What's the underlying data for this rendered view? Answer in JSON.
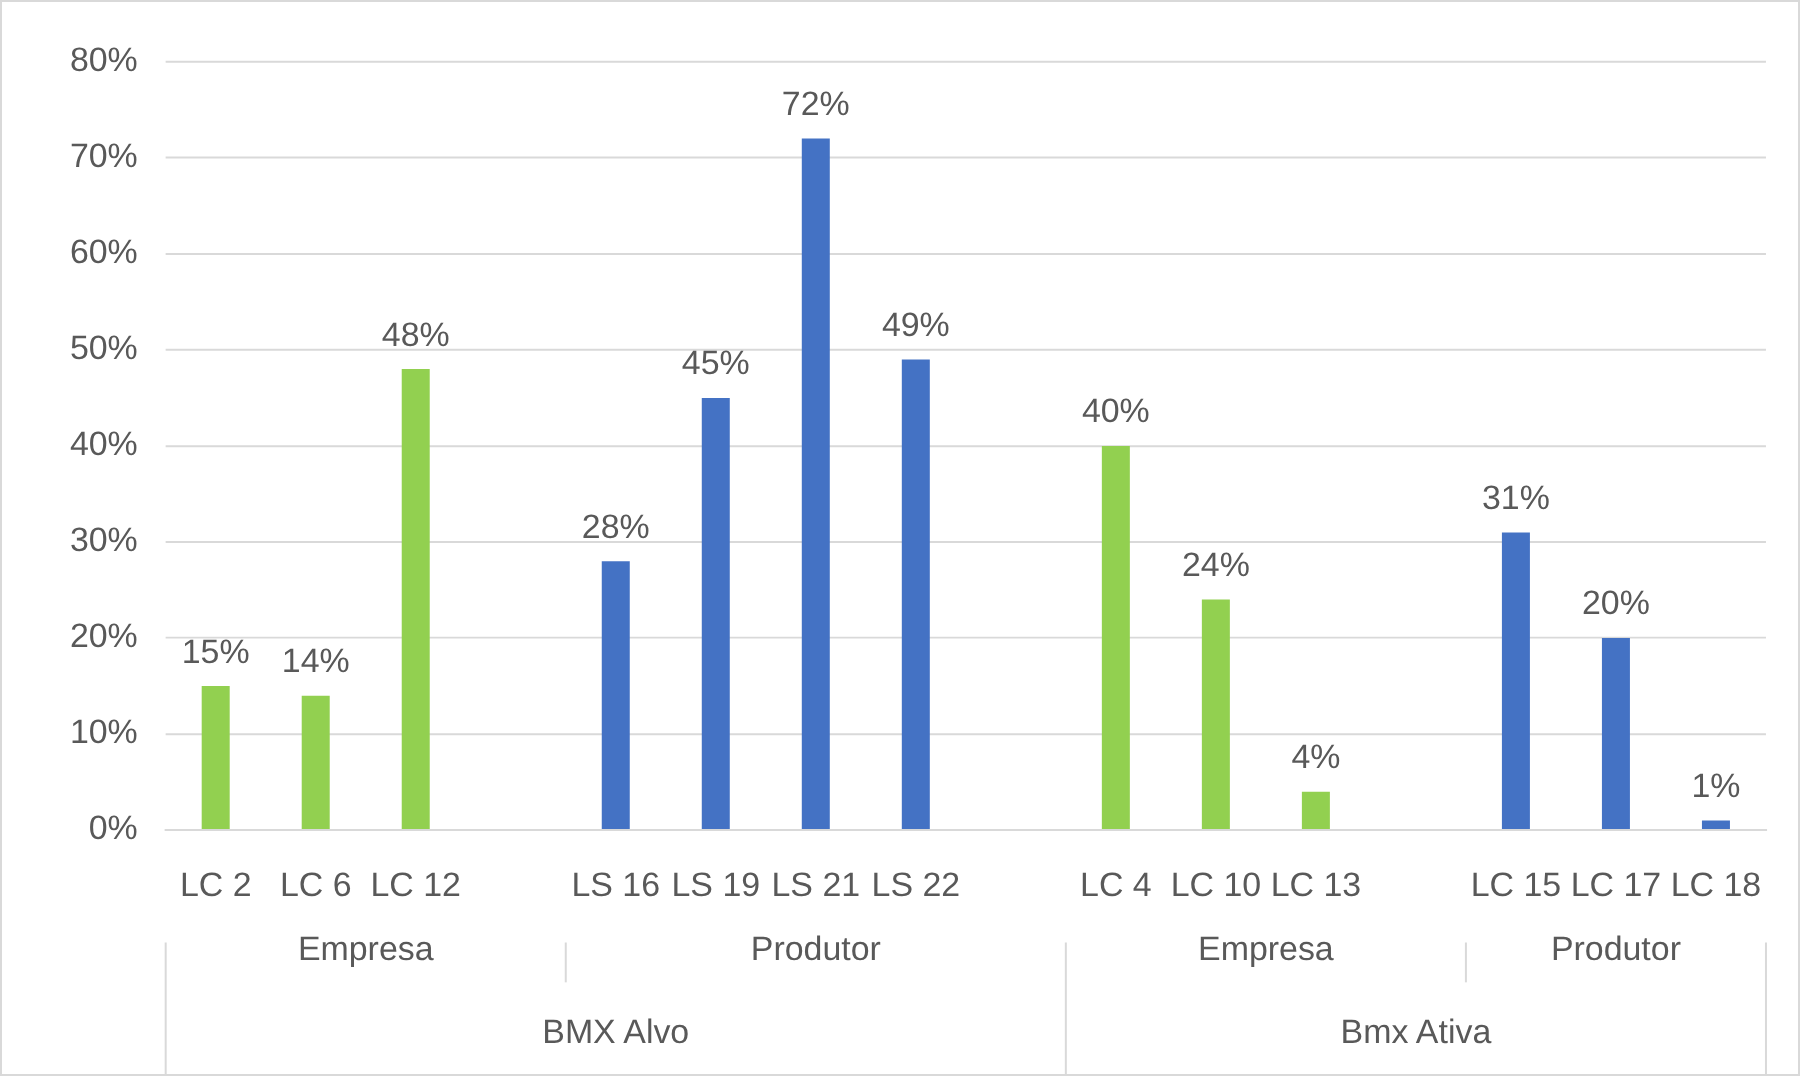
{
  "chart_data": {
    "type": "bar",
    "categories": [
      "LC 2",
      "LC 6",
      "LC 12",
      null,
      "LS 16",
      "LS 19",
      "LS 21",
      "LS 22",
      null,
      "LC 4",
      "LC 10",
      "LC 13",
      null,
      "LC 15",
      "LC 17",
      "LC 18"
    ],
    "values": [
      15,
      14,
      48,
      null,
      28,
      45,
      72,
      49,
      null,
      40,
      24,
      4,
      null,
      31,
      20,
      1
    ],
    "colors": [
      "#92d050",
      "#92d050",
      "#92d050",
      "#92d050",
      "#4472c4",
      "#4472c4",
      "#4472c4",
      "#4472c4",
      "#92d050",
      "#92d050",
      "#92d050",
      "#92d050",
      "#4472c4",
      "#4472c4",
      "#4472c4",
      "#4472c4"
    ],
    "value_labels": [
      "15%",
      "14%",
      "48%",
      null,
      "28%",
      "45%",
      "72%",
      "49%",
      null,
      "40%",
      "24%",
      "4%",
      null,
      "31%",
      "20%",
      "1%"
    ],
    "ylim": [
      0,
      80
    ],
    "yticks": [
      {
        "value": 0,
        "label": "0%"
      },
      {
        "value": 10,
        "label": "10%"
      },
      {
        "value": 20,
        "label": "20%"
      },
      {
        "value": 30,
        "label": "30%"
      },
      {
        "value": 40,
        "label": "40%"
      },
      {
        "value": 50,
        "label": "50%"
      },
      {
        "value": 60,
        "label": "60%"
      },
      {
        "value": 70,
        "label": "70%"
      },
      {
        "value": 80,
        "label": "80%"
      }
    ],
    "grid": "y",
    "legend": false,
    "annotations": [
      "Empresa",
      "Produtor",
      "Empresa",
      "Produtor",
      "BMX Alvo",
      "Bmx Ativa"
    ]
  }
}
